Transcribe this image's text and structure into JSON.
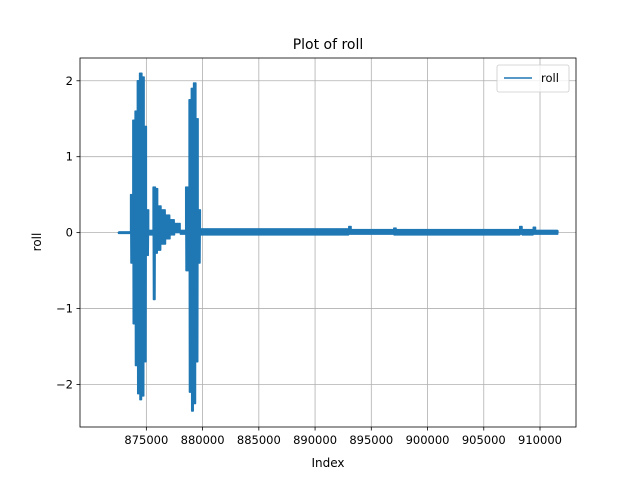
{
  "chart_data": {
    "type": "line",
    "title": "Plot of roll",
    "xlabel": "Index",
    "ylabel": "roll",
    "xlim": [
      869100,
      913200
    ],
    "ylim": [
      -2.56,
      2.3
    ],
    "xticks": [
      875000,
      880000,
      885000,
      890000,
      895000,
      900000,
      905000,
      910000
    ],
    "xtick_labels": [
      "875000",
      "880000",
      "885000",
      "890000",
      "895000",
      "900000",
      "905000",
      "910000"
    ],
    "yticks": [
      -2,
      -1,
      0,
      1,
      2
    ],
    "ytick_labels": [
      "−2",
      "−1",
      "0",
      "1",
      "2"
    ],
    "grid": true,
    "legend_position": "top-right",
    "series": [
      {
        "name": "roll",
        "color": "#1f77b4",
        "segments": [
          {
            "x0": 872500,
            "x1": 873600,
            "min": -0.01,
            "max": 0.01
          },
          {
            "x0": 873600,
            "x1": 873800,
            "min": -0.4,
            "max": 0.5
          },
          {
            "x0": 873800,
            "x1": 874000,
            "min": -1.2,
            "max": 1.48
          },
          {
            "x0": 874000,
            "x1": 874200,
            "min": -1.75,
            "max": 1.6
          },
          {
            "x0": 874200,
            "x1": 874400,
            "min": -2.12,
            "max": 2.0
          },
          {
            "x0": 874400,
            "x1": 874600,
            "min": -2.2,
            "max": 2.1
          },
          {
            "x0": 874600,
            "x1": 874800,
            "min": -2.15,
            "max": 2.05
          },
          {
            "x0": 874800,
            "x1": 875000,
            "min": -1.7,
            "max": 1.4
          },
          {
            "x0": 875000,
            "x1": 875200,
            "min": -0.3,
            "max": 0.3
          },
          {
            "x0": 875200,
            "x1": 875600,
            "min": -0.03,
            "max": 0.03
          },
          {
            "x0": 875600,
            "x1": 875800,
            "min": -0.88,
            "max": 0.6
          },
          {
            "x0": 875800,
            "x1": 876000,
            "min": -0.27,
            "max": 0.58
          },
          {
            "x0": 876000,
            "x1": 876300,
            "min": -0.23,
            "max": 0.35
          },
          {
            "x0": 876300,
            "x1": 876700,
            "min": -0.15,
            "max": 0.3
          },
          {
            "x0": 876700,
            "x1": 877100,
            "min": -0.08,
            "max": 0.23
          },
          {
            "x0": 877100,
            "x1": 877500,
            "min": -0.03,
            "max": 0.17
          },
          {
            "x0": 877500,
            "x1": 878000,
            "min": 0.0,
            "max": 0.12
          },
          {
            "x0": 878000,
            "x1": 878500,
            "min": -0.02,
            "max": 0.03
          },
          {
            "x0": 878500,
            "x1": 878800,
            "min": -0.5,
            "max": 0.6
          },
          {
            "x0": 878800,
            "x1": 879000,
            "min": -2.1,
            "max": 1.75
          },
          {
            "x0": 879000,
            "x1": 879200,
            "min": -2.35,
            "max": 1.9
          },
          {
            "x0": 879200,
            "x1": 879400,
            "min": -2.25,
            "max": 1.97
          },
          {
            "x0": 879400,
            "x1": 879600,
            "min": -1.7,
            "max": 1.5
          },
          {
            "x0": 879600,
            "x1": 879800,
            "min": -0.4,
            "max": 0.3
          },
          {
            "x0": 879800,
            "x1": 893000,
            "min": -0.03,
            "max": 0.05
          },
          {
            "x0": 893000,
            "x1": 893200,
            "min": -0.02,
            "max": 0.08
          },
          {
            "x0": 893200,
            "x1": 897000,
            "min": -0.02,
            "max": 0.04
          },
          {
            "x0": 897000,
            "x1": 897200,
            "min": -0.03,
            "max": 0.06
          },
          {
            "x0": 897200,
            "x1": 908200,
            "min": -0.03,
            "max": 0.04
          },
          {
            "x0": 908200,
            "x1": 908400,
            "min": -0.02,
            "max": 0.08
          },
          {
            "x0": 908400,
            "x1": 909400,
            "min": -0.03,
            "max": 0.04
          },
          {
            "x0": 909400,
            "x1": 909600,
            "min": -0.02,
            "max": 0.07
          },
          {
            "x0": 909600,
            "x1": 911600,
            "min": -0.02,
            "max": 0.03
          }
        ]
      }
    ]
  }
}
